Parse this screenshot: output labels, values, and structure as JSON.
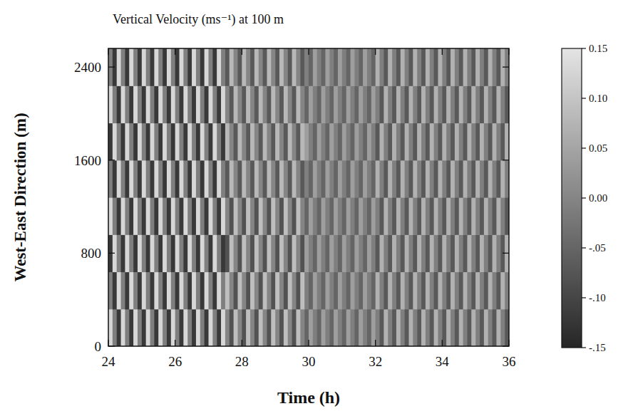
{
  "chart_data": {
    "type": "heatmap",
    "title": "Vertical Velocity (ms⁻¹) at 100 m",
    "x_label": "Time (h)",
    "y_label": "West-East Direction (m)",
    "xlim": [
      24,
      36
    ],
    "ylim": [
      0,
      2560
    ],
    "xticks": [
      24,
      26,
      28,
      30,
      32,
      34,
      36
    ],
    "yticks": [
      0,
      800,
      1600,
      2400
    ],
    "x_bins": [
      24,
      24.125,
      24.25,
      24.375,
      24.5,
      24.625,
      24.75,
      24.875,
      25,
      25.125,
      25.25,
      25.375,
      25.5,
      25.625,
      25.75,
      25.875,
      26,
      26.125,
      26.25,
      26.375,
      26.5,
      26.625,
      26.75,
      26.875,
      27,
      27.125,
      27.25,
      27.375,
      27.5,
      27.625,
      27.75,
      27.875,
      28,
      28.125,
      28.25,
      28.375,
      28.5,
      28.625,
      28.75,
      28.875,
      29,
      29.125,
      29.25,
      29.375,
      29.5,
      29.625,
      29.75,
      29.875,
      30,
      30.125,
      30.25,
      30.375,
      30.5,
      30.625,
      30.75,
      30.875,
      31,
      31.125,
      31.25,
      31.375,
      31.5,
      31.625,
      31.75,
      31.875,
      32,
      32.125,
      32.25,
      32.375,
      32.5,
      32.625,
      32.75,
      32.875,
      33,
      33.125,
      33.25,
      33.375,
      33.5,
      33.625,
      33.75,
      33.875,
      34,
      34.125,
      34.25,
      34.375,
      34.5,
      34.625,
      34.75,
      34.875,
      35,
      35.125,
      35.25,
      35.375,
      35.5,
      35.625,
      35.75,
      35.875,
      36
    ],
    "y_bins": [
      0,
      320,
      640,
      960,
      1280,
      1600,
      1920,
      2240,
      2560
    ],
    "cells": [
      [
        0.13,
        -0.01,
        -0.12,
        0.13,
        -0.01,
        -0.12,
        0.13,
        -0.01,
        -0.12,
        0.13,
        -0.01,
        -0.12,
        0.13,
        -0.01,
        -0.12,
        0.13,
        -0.01,
        -0.12,
        0.13,
        -0.01,
        -0.12,
        0.13,
        -0.01,
        -0.12,
        0.13,
        -0.01,
        -0.12,
        0.13,
        0,
        -0.08,
        0.09,
        0,
        -0.08,
        0.09,
        0,
        -0.08,
        0.09,
        0,
        -0.08,
        0.09,
        0,
        -0.08,
        0.09,
        0,
        -0.08,
        0.09,
        0,
        -0.05,
        0.04,
        -0.01,
        -0.05,
        0.04,
        -0.01,
        -0.05,
        0.04,
        -0.01,
        -0.05,
        0.04,
        -0.01,
        -0.05,
        0.04,
        -0.01,
        -0.05,
        0.04,
        -0.01,
        -0.07,
        0.07,
        -0.01,
        -0.07,
        0.07,
        -0.01,
        -0.07,
        0.07,
        -0.01,
        -0.07,
        0.07,
        -0.01,
        -0.07,
        0.07,
        -0.01,
        -0.07,
        0.07,
        -0.01,
        -0.07,
        0.07,
        -0.01,
        -0.07,
        0.07,
        -0.01,
        -0.07,
        0.07,
        -0.01,
        -0.07,
        0.07,
        -0.01,
        -0.07
      ],
      [
        -0.01,
        -0.12,
        0.13,
        -0.01,
        -0.12,
        0.13,
        -0.01,
        -0.12,
        0.13,
        -0.01,
        -0.12,
        0.13,
        -0.01,
        -0.12,
        0.13,
        -0.01,
        -0.12,
        0.13,
        -0.01,
        -0.12,
        0.13,
        -0.01,
        -0.12,
        0.13,
        -0.01,
        -0.12,
        0.13,
        -0.01,
        0.09,
        0,
        -0.08,
        0.09,
        0,
        -0.08,
        0.09,
        0,
        -0.08,
        0.09,
        0,
        -0.08,
        0.09,
        0,
        -0.08,
        0.09,
        0,
        -0.08,
        0.09,
        -0.01,
        -0.05,
        0.04,
        -0.01,
        -0.05,
        0.04,
        -0.01,
        -0.05,
        0.04,
        -0.01,
        -0.05,
        0.04,
        -0.01,
        -0.05,
        0.04,
        -0.01,
        -0.05,
        0.07,
        -0.01,
        -0.07,
        0.07,
        -0.01,
        -0.07,
        0.07,
        -0.01,
        -0.07,
        0.07,
        -0.01,
        -0.07,
        0.07,
        -0.01,
        -0.07,
        0.07,
        -0.01,
        -0.07,
        0.07,
        -0.01,
        -0.07,
        0.07,
        -0.01,
        -0.07,
        0.07,
        -0.01,
        -0.07,
        0.07,
        -0.01,
        -0.07,
        0.07,
        -0.01
      ],
      [
        -0.12,
        0.13,
        -0.01,
        -0.12,
        0.13,
        -0.01,
        -0.12,
        0.13,
        -0.01,
        -0.12,
        0.13,
        -0.01,
        -0.12,
        0.13,
        -0.01,
        -0.12,
        0.13,
        -0.01,
        -0.12,
        0.13,
        -0.01,
        -0.12,
        0.13,
        -0.01,
        -0.12,
        0.13,
        -0.01,
        -0.12,
        -0.08,
        0.09,
        0,
        -0.08,
        0.09,
        0,
        -0.08,
        0.09,
        0,
        -0.08,
        0.09,
        0,
        -0.08,
        0.09,
        0,
        -0.08,
        0.09,
        0,
        -0.08,
        0.04,
        -0.01,
        -0.05,
        0.04,
        -0.01,
        -0.05,
        0.04,
        -0.01,
        -0.05,
        0.04,
        -0.01,
        -0.05,
        0.04,
        -0.01,
        -0.05,
        0.04,
        -0.01,
        -0.07,
        0.07,
        -0.01,
        -0.07,
        0.07,
        -0.01,
        -0.07,
        0.07,
        -0.01,
        -0.07,
        0.07,
        -0.01,
        -0.07,
        0.07,
        -0.01,
        -0.07,
        0.07,
        -0.01,
        -0.07,
        0.07,
        -0.01,
        -0.07,
        0.07,
        -0.01,
        -0.07,
        0.07,
        -0.01,
        -0.07,
        0.07,
        -0.01,
        -0.07,
        0.07
      ],
      [
        0.13,
        -0.01,
        -0.12,
        0.13,
        -0.01,
        -0.12,
        0.13,
        -0.01,
        -0.12,
        0.13,
        -0.01,
        -0.12,
        0.13,
        -0.01,
        -0.12,
        0.13,
        -0.01,
        -0.12,
        0.13,
        -0.01,
        -0.12,
        0.13,
        -0.01,
        -0.12,
        0.13,
        -0.01,
        -0.12,
        0.13,
        0,
        -0.08,
        0.09,
        0,
        -0.08,
        0.09,
        0,
        -0.08,
        0.09,
        0,
        -0.08,
        0.09,
        0,
        -0.08,
        0.09,
        0,
        -0.08,
        0.09,
        0,
        -0.05,
        0.04,
        -0.01,
        -0.05,
        0.04,
        -0.01,
        -0.05,
        0.04,
        -0.01,
        -0.05,
        0.04,
        -0.01,
        -0.05,
        0.04,
        -0.01,
        -0.05,
        0.04,
        -0.01,
        -0.07,
        0.07,
        -0.01,
        -0.07,
        0.07,
        -0.01,
        -0.07,
        0.07,
        -0.01,
        -0.07,
        0.07,
        -0.01,
        -0.07,
        0.07,
        -0.01,
        -0.07,
        0.07,
        -0.01,
        -0.07,
        0.07,
        -0.01,
        -0.07,
        0.07,
        -0.01,
        -0.07,
        0.07,
        -0.01,
        -0.07,
        0.07,
        -0.01,
        -0.07
      ],
      [
        -0.01,
        -0.12,
        0.13,
        -0.01,
        -0.12,
        0.13,
        -0.01,
        -0.12,
        0.13,
        -0.01,
        -0.12,
        0.13,
        -0.01,
        -0.12,
        0.13,
        -0.01,
        -0.12,
        0.13,
        -0.01,
        -0.12,
        0.13,
        -0.01,
        -0.12,
        0.13,
        -0.01,
        -0.12,
        0.13,
        -0.01,
        -0.07,
        0.08,
        0,
        -0.07,
        0.08,
        0,
        -0.07,
        0.08,
        0,
        -0.07,
        0.08,
        0,
        -0.07,
        0.08,
        0,
        -0.07,
        0.08,
        0,
        -0.07,
        -0.01,
        -0.05,
        0.04,
        -0.01,
        -0.05,
        0.04,
        -0.01,
        -0.05,
        0.04,
        -0.01,
        -0.05,
        0.04,
        -0.01,
        -0.05,
        0.04,
        -0.01,
        -0.05,
        0.07,
        -0.01,
        -0.07,
        0.07,
        -0.01,
        -0.07,
        0.07,
        -0.01,
        -0.07,
        0.07,
        -0.01,
        -0.07,
        0.07,
        -0.01,
        -0.07,
        0.07,
        -0.01,
        -0.07,
        0.07,
        -0.01,
        -0.07,
        0.07,
        -0.01,
        -0.07,
        0.07,
        -0.01,
        -0.07,
        0.07,
        -0.01,
        -0.07,
        0.07,
        -0.01
      ],
      [
        -0.12,
        0.13,
        -0.01,
        -0.12,
        0.13,
        -0.01,
        -0.12,
        0.13,
        -0.01,
        -0.12,
        0.13,
        -0.01,
        -0.12,
        0.13,
        -0.01,
        -0.12,
        0.13,
        -0.01,
        -0.12,
        0.13,
        -0.01,
        -0.12,
        0.13,
        -0.01,
        -0.12,
        0.13,
        -0.01,
        -0.12,
        0.08,
        0,
        -0.07,
        0.08,
        0,
        -0.07,
        0.08,
        0,
        -0.07,
        0.08,
        0,
        -0.07,
        0.08,
        0,
        -0.07,
        0.08,
        0,
        -0.07,
        0.08,
        0.04,
        -0.01,
        -0.05,
        0.04,
        -0.01,
        -0.05,
        0.04,
        -0.01,
        -0.05,
        0.04,
        -0.01,
        -0.05,
        0.04,
        -0.01,
        -0.05,
        0.04,
        -0.01,
        -0.07,
        0.07,
        -0.01,
        -0.07,
        0.07,
        -0.01,
        -0.07,
        0.07,
        -0.01,
        -0.07,
        0.07,
        -0.01,
        -0.07,
        0.07,
        -0.01,
        -0.07,
        0.07,
        -0.01,
        -0.07,
        0.07,
        -0.01,
        -0.07,
        0.07,
        -0.01,
        -0.07,
        0.07,
        -0.01,
        -0.07,
        0.07,
        -0.01,
        -0.07,
        0.07
      ],
      [
        0.13,
        -0.01,
        -0.12,
        0.13,
        -0.01,
        -0.12,
        0.13,
        -0.01,
        -0.12,
        0.13,
        -0.01,
        -0.12,
        0.13,
        -0.01,
        -0.12,
        0.13,
        -0.01,
        -0.12,
        0.13,
        -0.01,
        -0.12,
        0.13,
        -0.01,
        -0.12,
        0.13,
        -0.01,
        -0.12,
        0.13,
        0,
        -0.07,
        0.08,
        0,
        -0.07,
        0.08,
        0,
        -0.07,
        0.08,
        0,
        -0.07,
        0.08,
        0,
        -0.07,
        0.08,
        0,
        -0.07,
        0.08,
        0,
        -0.05,
        0.04,
        -0.01,
        -0.05,
        0.04,
        -0.01,
        -0.05,
        0.04,
        -0.01,
        -0.05,
        0.04,
        -0.01,
        -0.05,
        0.04,
        -0.01,
        -0.05,
        0.04,
        -0.01,
        -0.07,
        0.07,
        -0.01,
        -0.07,
        0.07,
        -0.01,
        -0.07,
        0.07,
        -0.01,
        -0.07,
        0.07,
        -0.01,
        -0.07,
        0.07,
        -0.01,
        -0.07,
        0.07,
        -0.01,
        -0.07,
        0.07,
        -0.01,
        -0.07,
        0.07,
        -0.01,
        -0.07,
        0.07,
        -0.01,
        -0.07,
        0.07,
        -0.01,
        -0.07
      ],
      [
        -0.01,
        -0.12,
        0.13,
        -0.01,
        -0.12,
        0.13,
        -0.01,
        -0.12,
        0.13,
        -0.01,
        -0.12,
        0.13,
        -0.01,
        -0.12,
        0.13,
        -0.01,
        -0.12,
        0.13,
        -0.01,
        -0.12,
        0.13,
        -0.01,
        -0.12,
        0.13,
        -0.01,
        -0.12,
        0.13,
        -0.01,
        -0.07,
        0.08,
        0,
        -0.07,
        0.08,
        0,
        -0.07,
        0.08,
        0,
        -0.07,
        0.08,
        0,
        -0.07,
        0.08,
        0,
        -0.07,
        0.08,
        0,
        -0.07,
        -0.01,
        -0.05,
        0.04,
        -0.01,
        -0.05,
        0.04,
        -0.01,
        -0.05,
        0.04,
        -0.01,
        -0.05,
        0.04,
        -0.01,
        -0.05,
        0.04,
        -0.01,
        -0.05,
        0.07,
        -0.01,
        -0.07,
        0.07,
        -0.01,
        -0.07,
        0.07,
        -0.01,
        -0.07,
        0.07,
        -0.01,
        -0.07,
        0.07,
        -0.01,
        -0.07,
        0.07,
        -0.01,
        -0.07,
        0.07,
        -0.01,
        -0.07,
        0.07,
        -0.01,
        -0.07,
        0.07,
        -0.01,
        -0.07,
        0.07,
        -0.01,
        -0.07,
        0.07,
        -0.01
      ]
    ],
    "color_range": [
      -0.15,
      0.15
    ],
    "color_ticks": [
      0.15,
      {
        "value": 0.1,
        "label": "0.10"
      },
      0.05,
      {
        "value": 0,
        "label": "0.00"
      },
      {
        "value": -0.05,
        "label": "-.05"
      },
      {
        "value": -0.1,
        "label": "-.10"
      },
      {
        "value": -0.15,
        "label": "-.15"
      }
    ]
  }
}
